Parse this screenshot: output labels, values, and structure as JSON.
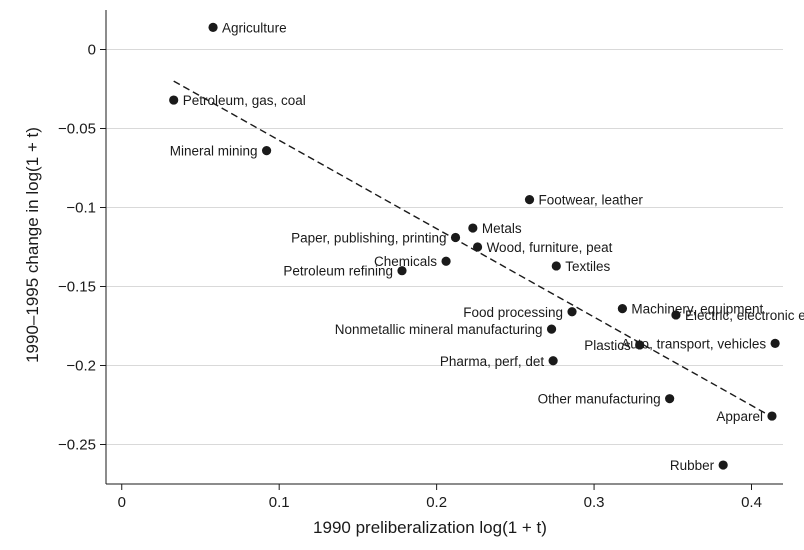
{
  "chart_data": {
    "type": "scatter",
    "title": "",
    "xlabel": "1990 preliberalization log(1 + t)",
    "ylabel": "1990–1995 change in log(1 + t)",
    "xlim": [
      -0.01,
      0.42
    ],
    "ylim": [
      -0.275,
      0.025
    ],
    "x_ticks": [
      {
        "value": 0,
        "label": "0"
      },
      {
        "value": 0.1,
        "label": "0.1"
      },
      {
        "value": 0.2,
        "label": "0.2"
      },
      {
        "value": 0.3,
        "label": "0.3"
      },
      {
        "value": 0.4,
        "label": "0.4"
      }
    ],
    "y_ticks": [
      {
        "value": 0,
        "label": "0"
      },
      {
        "value": -0.05,
        "label": "−0.05"
      },
      {
        "value": -0.1,
        "label": "−0.1"
      },
      {
        "value": -0.15,
        "label": "−0.15"
      },
      {
        "value": -0.2,
        "label": "−0.2"
      },
      {
        "value": -0.25,
        "label": "−0.25"
      }
    ],
    "grid": "horizontal",
    "fit_line": {
      "x": [
        0.033,
        0.412
      ],
      "y": [
        -0.02,
        -0.232
      ],
      "style": "dashed"
    },
    "points": [
      {
        "label": "Agriculture",
        "x": 0.058,
        "y": 0.014,
        "anchor": "start"
      },
      {
        "label": "Petroleum, gas, coal",
        "x": 0.033,
        "y": -0.032,
        "anchor": "start"
      },
      {
        "label": "Mineral mining",
        "x": 0.092,
        "y": -0.064,
        "anchor": "end"
      },
      {
        "label": "Footwear, leather",
        "x": 0.259,
        "y": -0.095,
        "anchor": "start"
      },
      {
        "label": "Metals",
        "x": 0.223,
        "y": -0.113,
        "anchor": "start"
      },
      {
        "label": "Paper, publishing, printing",
        "x": 0.212,
        "y": -0.119,
        "anchor": "end"
      },
      {
        "label": "Wood, furniture, peat",
        "x": 0.226,
        "y": -0.125,
        "anchor": "start"
      },
      {
        "label": "Chemicals",
        "x": 0.206,
        "y": -0.134,
        "anchor": "end"
      },
      {
        "label": "Textiles",
        "x": 0.276,
        "y": -0.137,
        "anchor": "start"
      },
      {
        "label": "Petroleum refining",
        "x": 0.178,
        "y": -0.14,
        "anchor": "end"
      },
      {
        "label": "Machinery, equipment",
        "x": 0.318,
        "y": -0.164,
        "anchor": "start"
      },
      {
        "label": "Food processing",
        "x": 0.286,
        "y": -0.166,
        "anchor": "end"
      },
      {
        "label": "Nonmetallic mineral manufacturing",
        "x": 0.273,
        "y": -0.177,
        "anchor": "end"
      },
      {
        "label": "Electric, electronic equipment",
        "x": 0.352,
        "y": -0.168,
        "anchor": "start"
      },
      {
        "label": "Plastics",
        "x": 0.329,
        "y": -0.187,
        "anchor": "end"
      },
      {
        "label": "Auto, transport, vehicles",
        "x": 0.415,
        "y": -0.186,
        "anchor": "end"
      },
      {
        "label": "Pharma, perf, det",
        "x": 0.274,
        "y": -0.197,
        "anchor": "end"
      },
      {
        "label": "Other manufacturing",
        "x": 0.348,
        "y": -0.221,
        "anchor": "end"
      },
      {
        "label": "Apparel",
        "x": 0.413,
        "y": -0.232,
        "anchor": "end"
      },
      {
        "label": "Rubber",
        "x": 0.382,
        "y": -0.263,
        "anchor": "end"
      }
    ],
    "colors": {
      "point": "#1a1a1a",
      "grid": "#d9d9d9",
      "line": "#1a1a1a"
    }
  }
}
